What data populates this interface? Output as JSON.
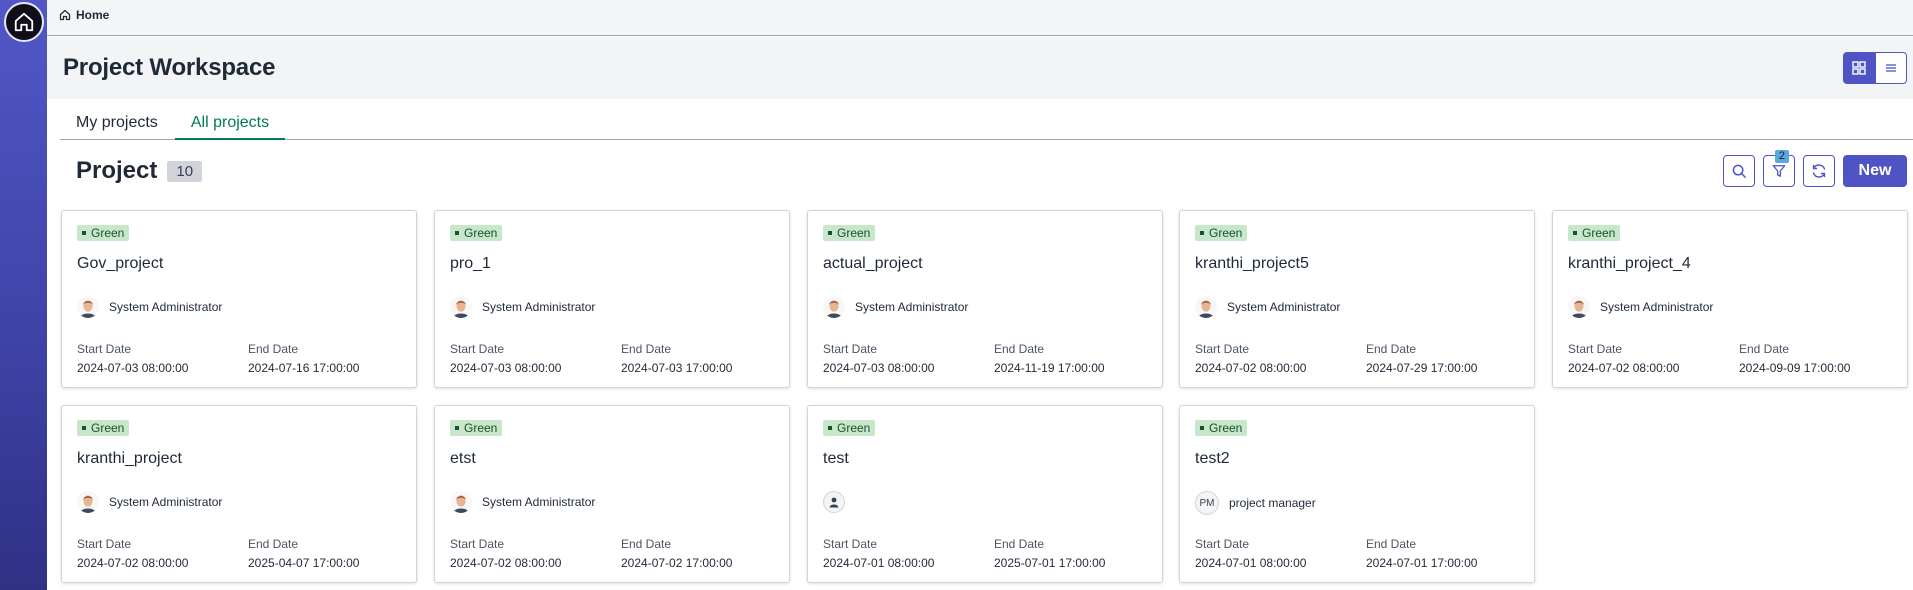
{
  "breadcrumb": {
    "home_label": "Home"
  },
  "header": {
    "title": "Project Workspace"
  },
  "tabs": [
    {
      "label": "My projects"
    },
    {
      "label": "All projects"
    }
  ],
  "section": {
    "title": "Project",
    "count": "10"
  },
  "toolbar": {
    "filter_count": "2",
    "new_label": "New"
  },
  "labels": {
    "start_date": "Start Date",
    "end_date": "End Date"
  },
  "colors": {
    "sidebar": "#4f54c4",
    "accent": "#4f54c4",
    "active_tab": "#047857",
    "status_green": "#c8e6c9"
  },
  "cards": [
    {
      "status": "Green",
      "name": "Gov_project",
      "owner": "System Administrator",
      "avatar": "photo",
      "start": "2024-07-03 08:00:00",
      "end": "2024-07-16 17:00:00"
    },
    {
      "status": "Green",
      "name": "pro_1",
      "owner": "System Administrator",
      "avatar": "photo",
      "start": "2024-07-03 08:00:00",
      "end": "2024-07-03 17:00:00"
    },
    {
      "status": "Green",
      "name": "actual_project",
      "owner": "System Administrator",
      "avatar": "photo",
      "start": "2024-07-03 08:00:00",
      "end": "2024-11-19 17:00:00"
    },
    {
      "status": "Green",
      "name": "kranthi_project5",
      "owner": "System Administrator",
      "avatar": "photo",
      "start": "2024-07-02 08:00:00",
      "end": "2024-07-29 17:00:00"
    },
    {
      "status": "Green",
      "name": "kranthi_project_4",
      "owner": "System Administrator",
      "avatar": "photo",
      "start": "2024-07-02 08:00:00",
      "end": "2024-09-09 17:00:00"
    },
    {
      "status": "Green",
      "name": "kranthi_project",
      "owner": "System Administrator",
      "avatar": "photo",
      "start": "2024-07-02 08:00:00",
      "end": "2025-04-07 17:00:00"
    },
    {
      "status": "Green",
      "name": "etst",
      "owner": "System Administrator",
      "avatar": "photo",
      "start": "2024-07-02 08:00:00",
      "end": "2024-07-02 17:00:00"
    },
    {
      "status": "Green",
      "name": "test",
      "owner": "",
      "avatar": "blank",
      "start": "2024-07-01 08:00:00",
      "end": "2025-07-01 17:00:00"
    },
    {
      "status": "Green",
      "name": "test2",
      "owner": "project manager",
      "avatar": "initials",
      "initials": "PM",
      "start": "2024-07-01 08:00:00",
      "end": "2024-07-01 17:00:00"
    }
  ]
}
